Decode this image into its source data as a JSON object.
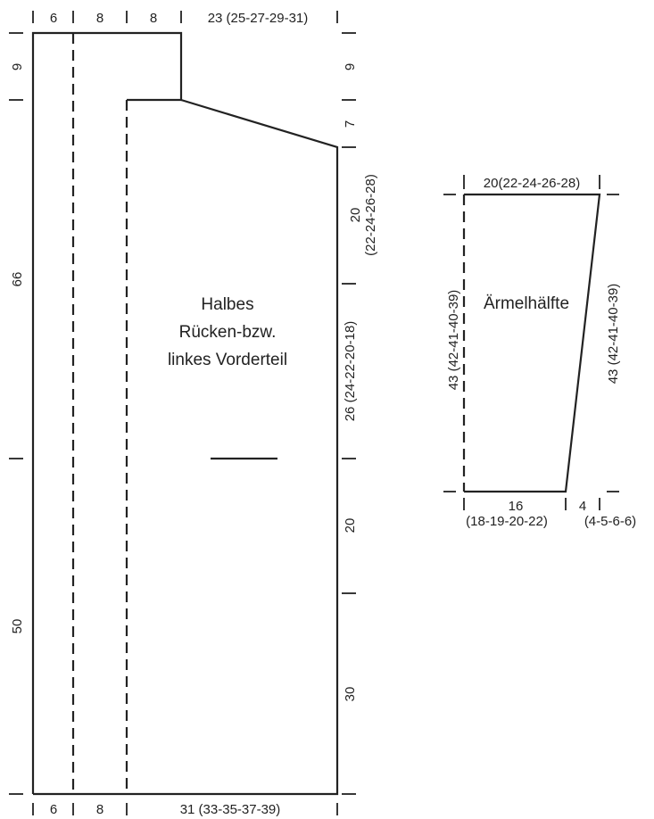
{
  "back_piece": {
    "title_lines": [
      "Halbes",
      "Rücken-bzw.",
      "linkes Vorderteil"
    ],
    "top_widths": [
      "6",
      "8",
      "8",
      "23 (25-27-29-31)"
    ],
    "bottom_widths": [
      "6",
      "8",
      "31 (33-35-37-39)"
    ],
    "left_heights": [
      "9",
      "66",
      "50"
    ],
    "right_heights": [
      "9",
      "7",
      "20",
      "(22-24-26-28)",
      "26 (24-22-20-18)",
      "20",
      "30"
    ]
  },
  "sleeve": {
    "title": "Ärmelhälfte",
    "top_width": "20(22-24-26-28)",
    "bottom_width_1": "16",
    "bottom_width_1_sizes": "(18-19-20-22)",
    "bottom_width_2": "4",
    "bottom_width_2_sizes": "(4-5-6-6)",
    "left_height": "43 (42-41-40-39)",
    "right_height": "43 (42-41-40-39)"
  }
}
